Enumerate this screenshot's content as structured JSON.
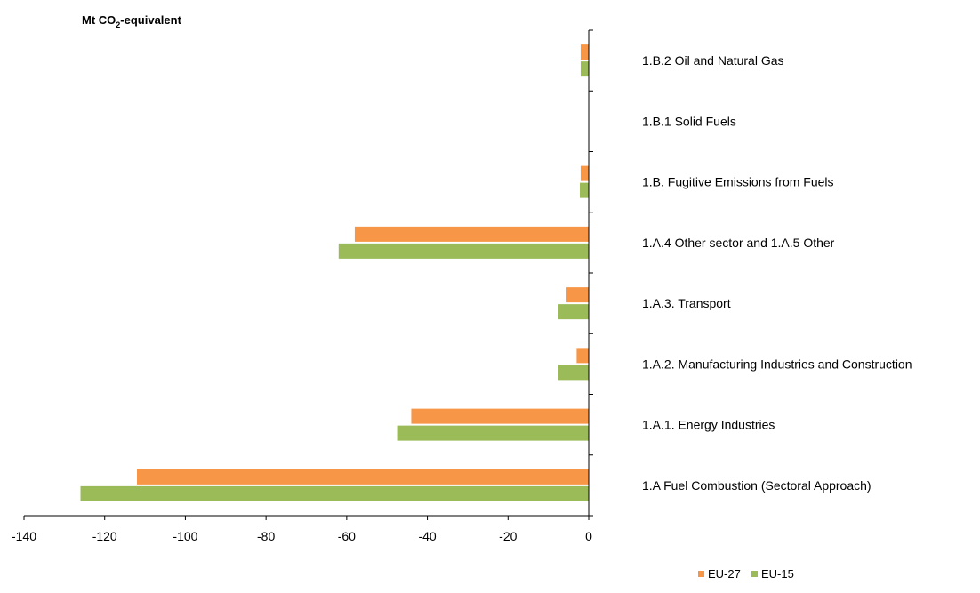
{
  "chart_data": {
    "type": "bar",
    "orientation": "horizontal",
    "unit_label": {
      "prefix": "Mt CO",
      "subscript": "2",
      "suffix": "-equivalent"
    },
    "categories": [
      "1.A Fuel Combustion (Sectoral Approach)",
      "1.A.1.  Energy Industries",
      "1.A.2.  Manufacturing Industries and Construction",
      "1.A.3.  Transport",
      "1.A.4  Other sector and 1.A.5 Other",
      "1.B. Fugitive Emissions from Fuels",
      "1.B.1 Solid Fuels",
      "1.B.2 Oil and Natural Gas"
    ],
    "series": [
      {
        "name": "EU-27",
        "color": "#F79646",
        "values": [
          -112,
          -44,
          -3,
          -5.5,
          -58,
          -2,
          0,
          -2
        ]
      },
      {
        "name": "EU-15",
        "color": "#9BBB59",
        "values": [
          -126,
          -47.5,
          -7.5,
          -7.5,
          -62,
          -2.2,
          0,
          -2
        ]
      }
    ],
    "xlim": [
      -140,
      0
    ],
    "xticks": [
      -140,
      -120,
      -100,
      -80,
      -60,
      -40,
      -20,
      0
    ],
    "grid": false,
    "legend_position": "bottom-right"
  }
}
